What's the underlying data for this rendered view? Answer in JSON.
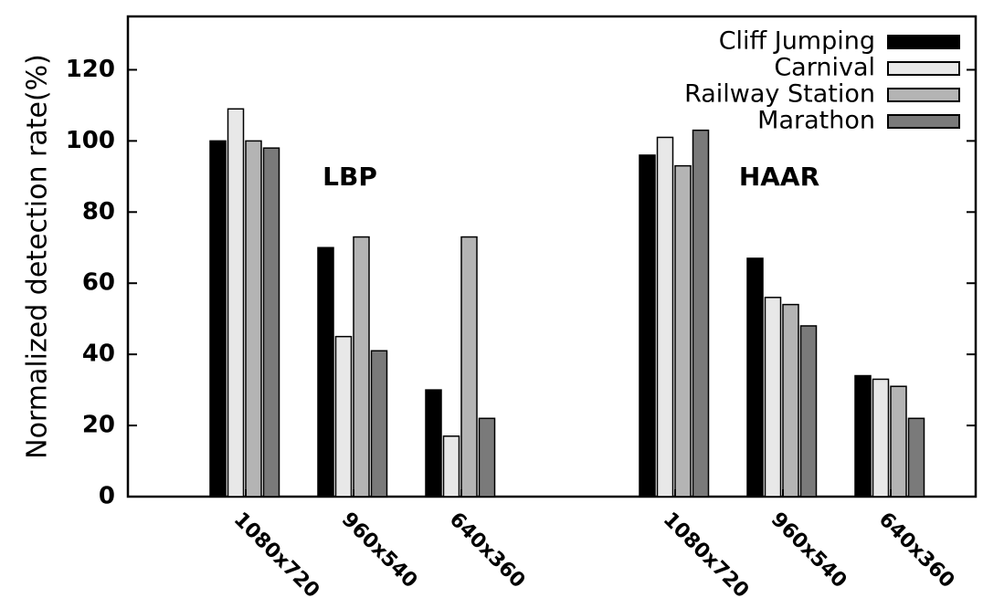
{
  "chart_data": {
    "type": "bar",
    "title": "",
    "xlabel": "",
    "ylabel": "Normalized detection rate(%)",
    "ylim": [
      0,
      135
    ],
    "yticks": [
      0,
      20,
      40,
      60,
      80,
      100,
      120
    ],
    "grid": false,
    "legend_position": "top-right",
    "groups": [
      {
        "name": "LBP",
        "categories": [
          "1080x720",
          "960x540",
          "640x360"
        ]
      },
      {
        "name": "HAAR",
        "categories": [
          "1080x720",
          "960x540",
          "640x360"
        ]
      }
    ],
    "series": [
      {
        "name": "Cliff Jumping",
        "color": "#000000",
        "values": [
          100,
          70,
          30,
          96,
          67,
          34
        ]
      },
      {
        "name": "Carnival",
        "color": "#e8e8e8",
        "values": [
          109,
          45,
          17,
          101,
          56,
          33
        ]
      },
      {
        "name": "Railway Station",
        "color": "#b4b4b4",
        "values": [
          100,
          73,
          73,
          93,
          54,
          31
        ]
      },
      {
        "name": "Marathon",
        "color": "#7a7a7a",
        "values": [
          98,
          41,
          22,
          103,
          48,
          22
        ]
      }
    ]
  }
}
